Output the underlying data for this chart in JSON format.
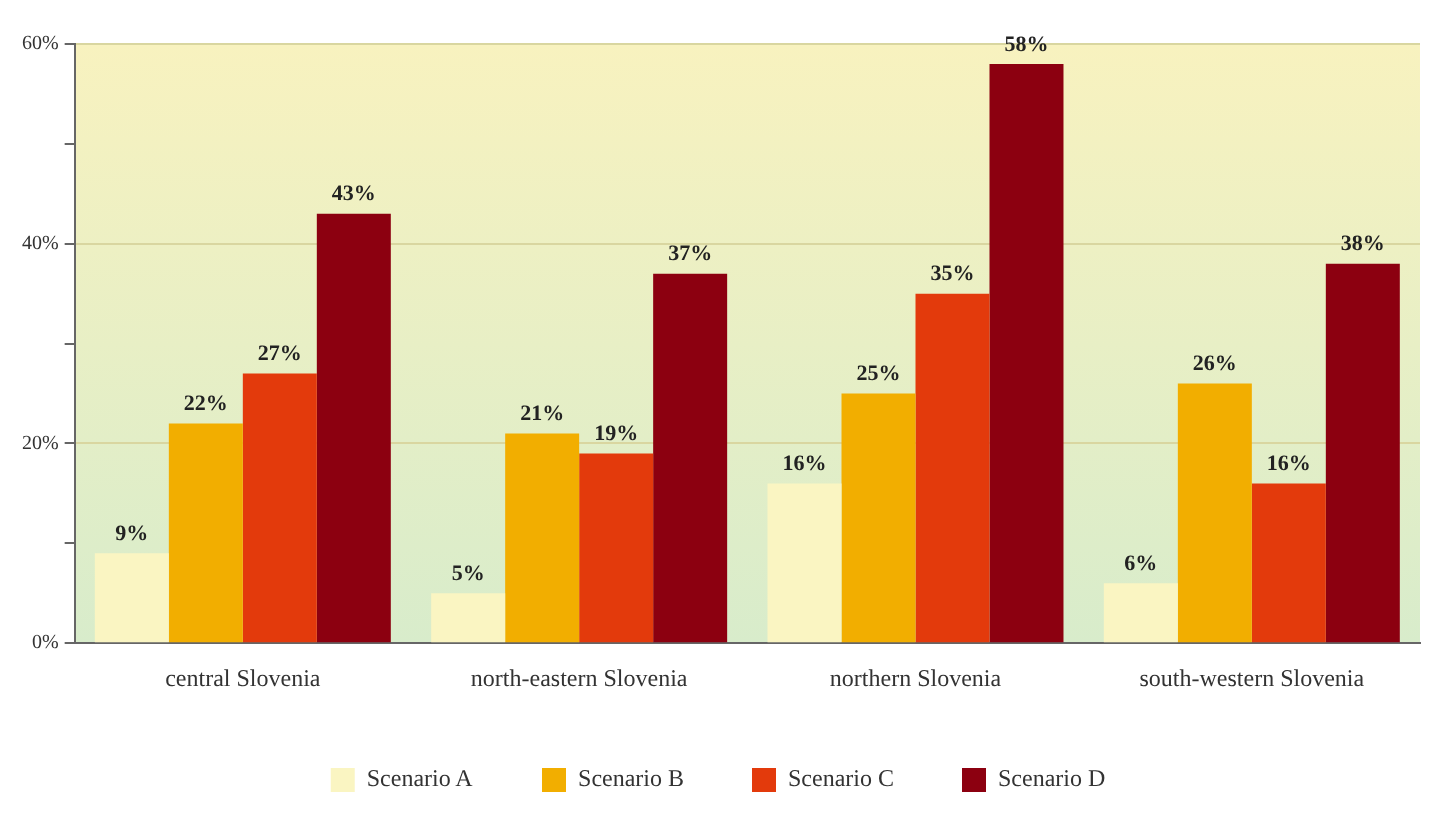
{
  "chart_data": {
    "type": "bar",
    "categories": [
      "central Slovenia",
      "north-eastern Slovenia",
      "northern Slovenia",
      "south-western Slovenia"
    ],
    "series": [
      {
        "name": "Scenario A",
        "color": "#faf5c2",
        "values": [
          9,
          5,
          16,
          6
        ],
        "value_labels": [
          "9%",
          "5%",
          "16%",
          "6%"
        ]
      },
      {
        "name": "Scenario B",
        "color": "#f2ae00",
        "values": [
          22,
          21,
          25,
          26
        ],
        "value_labels": [
          "22%",
          "21%",
          "25%",
          "26%"
        ]
      },
      {
        "name": "Scenario C",
        "color": "#e33a0c",
        "values": [
          27,
          19,
          35,
          16
        ],
        "value_labels": [
          "27%",
          "19%",
          "35%",
          "16%"
        ]
      },
      {
        "name": "Scenario D",
        "color": "#8c0010",
        "values": [
          43,
          37,
          58,
          38
        ],
        "value_labels": [
          "43%",
          "37%",
          "58%",
          "38%"
        ]
      }
    ],
    "ylim": [
      0,
      60
    ],
    "yticks": [
      {
        "value": 0,
        "label": "0%"
      },
      {
        "value": 10,
        "label": null
      },
      {
        "value": 20,
        "label": "20%"
      },
      {
        "value": 30,
        "label": null
      },
      {
        "value": 40,
        "label": "40%"
      },
      {
        "value": 50,
        "label": null
      },
      {
        "value": 60,
        "label": "60%"
      }
    ],
    "grid": "y",
    "legend": "bottom"
  }
}
